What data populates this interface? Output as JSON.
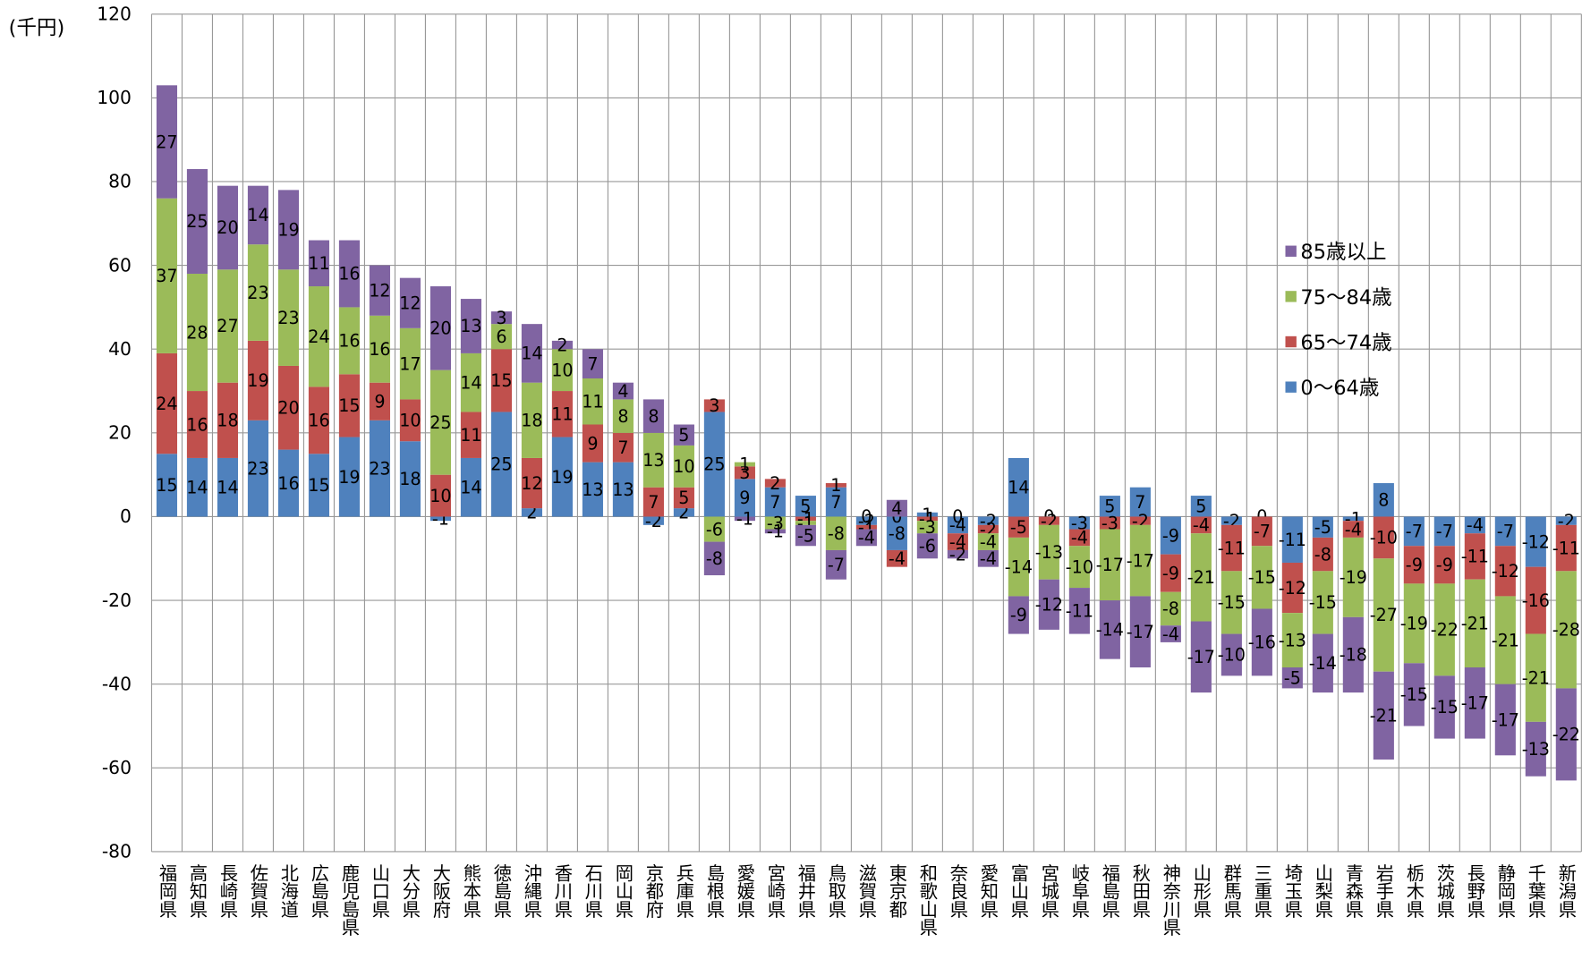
{
  "chart_data": {
    "type": "bar",
    "stacked": true,
    "unit_label": "(千円)",
    "categories": [
      "福岡県",
      "高知県",
      "長崎県",
      "佐賀県",
      "北海道",
      "広島県",
      "鹿児島県",
      "山口県",
      "大分県",
      "大阪府",
      "熊本県",
      "徳島県",
      "沖縄県",
      "香川県",
      "石川県",
      "岡山県",
      "京都府",
      "兵庫県",
      "島根県",
      "愛媛県",
      "宮崎県",
      "福井県",
      "鳥取県",
      "滋賀県",
      "東京都",
      "和歌山県",
      "奈良県",
      "愛知県",
      "富山県",
      "宮城県",
      "岐阜県",
      "福島県",
      "秋田県",
      "神奈川県",
      "山形県",
      "群馬県",
      "三重県",
      "埼玉県",
      "山梨県",
      "青森県",
      "岩手県",
      "栃木県",
      "茨城県",
      "長野県",
      "静岡県",
      "千葉県",
      "新潟県"
    ],
    "series": [
      {
        "name": "0～64歳",
        "color": "#4f81bd",
        "values": [
          15,
          14,
          14,
          23,
          16,
          15,
          19,
          23,
          18,
          -1,
          14,
          25,
          2,
          19,
          13,
          13,
          -2,
          2,
          25,
          9,
          7,
          5,
          7,
          -2,
          -8,
          1,
          -4,
          -2,
          14,
          0,
          -3,
          5,
          7,
          -9,
          5,
          -2,
          0,
          -11,
          -5,
          -1,
          8,
          -7,
          -7,
          -4,
          -7,
          -12,
          -2
        ]
      },
      {
        "name": "65～74歳",
        "color": "#c0504d",
        "values": [
          24,
          16,
          18,
          19,
          20,
          16,
          15,
          9,
          10,
          10,
          11,
          15,
          12,
          11,
          9,
          7,
          7,
          5,
          3,
          3,
          2,
          -1,
          1,
          -1,
          -4,
          -1,
          -4,
          -2,
          -5,
          -2,
          -4,
          -3,
          -2,
          -9,
          -4,
          -11,
          -7,
          -12,
          -8,
          -4,
          -10,
          -9,
          -9,
          -11,
          -12,
          -16,
          -11
        ]
      },
      {
        "name": "75～84歳",
        "color": "#9bbb59",
        "values": [
          37,
          28,
          27,
          23,
          23,
          24,
          16,
          16,
          17,
          25,
          14,
          6,
          18,
          10,
          11,
          8,
          13,
          10,
          -6,
          1,
          -3,
          -1,
          -8,
          0,
          0,
          -3,
          0,
          -4,
          -14,
          -13,
          -10,
          -17,
          -17,
          -8,
          -21,
          -15,
          -15,
          -13,
          -15,
          -19,
          -27,
          -19,
          -22,
          -21,
          -21,
          -21,
          -28
        ]
      },
      {
        "name": "85歳以上",
        "color": "#8064a2",
        "values": [
          27,
          25,
          20,
          14,
          19,
          11,
          16,
          12,
          12,
          20,
          13,
          3,
          14,
          2,
          7,
          4,
          8,
          5,
          -8,
          -1,
          -1,
          -5,
          -7,
          -4,
          4,
          -6,
          -2,
          -4,
          -9,
          -12,
          -11,
          -14,
          -17,
          -4,
          -17,
          -10,
          -16,
          -5,
          -14,
          -18,
          -21,
          -15,
          -15,
          -17,
          -17,
          -13,
          -22
        ]
      }
    ],
    "ylim": [
      -80,
      120
    ],
    "yticks": [
      -80,
      -60,
      -40,
      -20,
      0,
      20,
      40,
      60,
      80,
      100,
      120
    ],
    "grid": true
  }
}
